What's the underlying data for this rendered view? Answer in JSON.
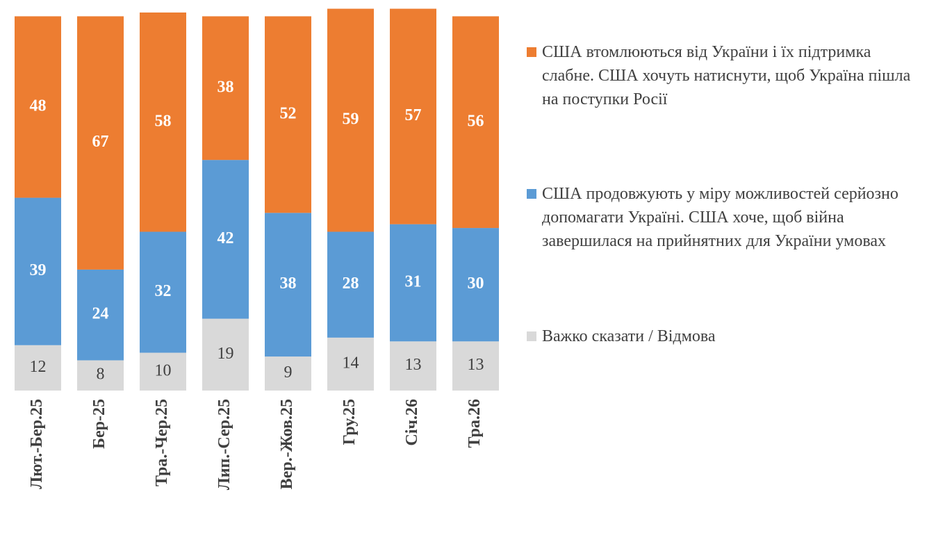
{
  "chart_data": {
    "type": "stacked_bar",
    "categories": [
      "Лют.-Бер.25",
      "Бер-25",
      "Тра.-Чер.25",
      "Лип.-Сер.25",
      "Вер.-Жов.25",
      "Гру.25",
      "Січ.26",
      "Тра.26"
    ],
    "series": [
      {
        "name": "США втомлюються від України і їх підтримка слабне. США хочуть натиснути, щоб Україна пішла на поступки Росії",
        "color": "#ED7D31",
        "values": [
          48,
          67,
          58,
          38,
          52,
          59,
          57,
          56
        ]
      },
      {
        "name": "США продовжують у міру можливостей серйозно допомагати Україні. США хоче, щоб війна завершилася на прийнятних для України умовах",
        "color": "#5B9BD5",
        "values": [
          39,
          24,
          32,
          42,
          38,
          28,
          31,
          30
        ]
      },
      {
        "name": "Важко сказати / Відмова",
        "color": "#D9D9D9",
        "values": [
          12,
          8,
          10,
          19,
          9,
          14,
          13,
          13
        ]
      }
    ],
    "ylim": [
      0,
      100
    ]
  }
}
